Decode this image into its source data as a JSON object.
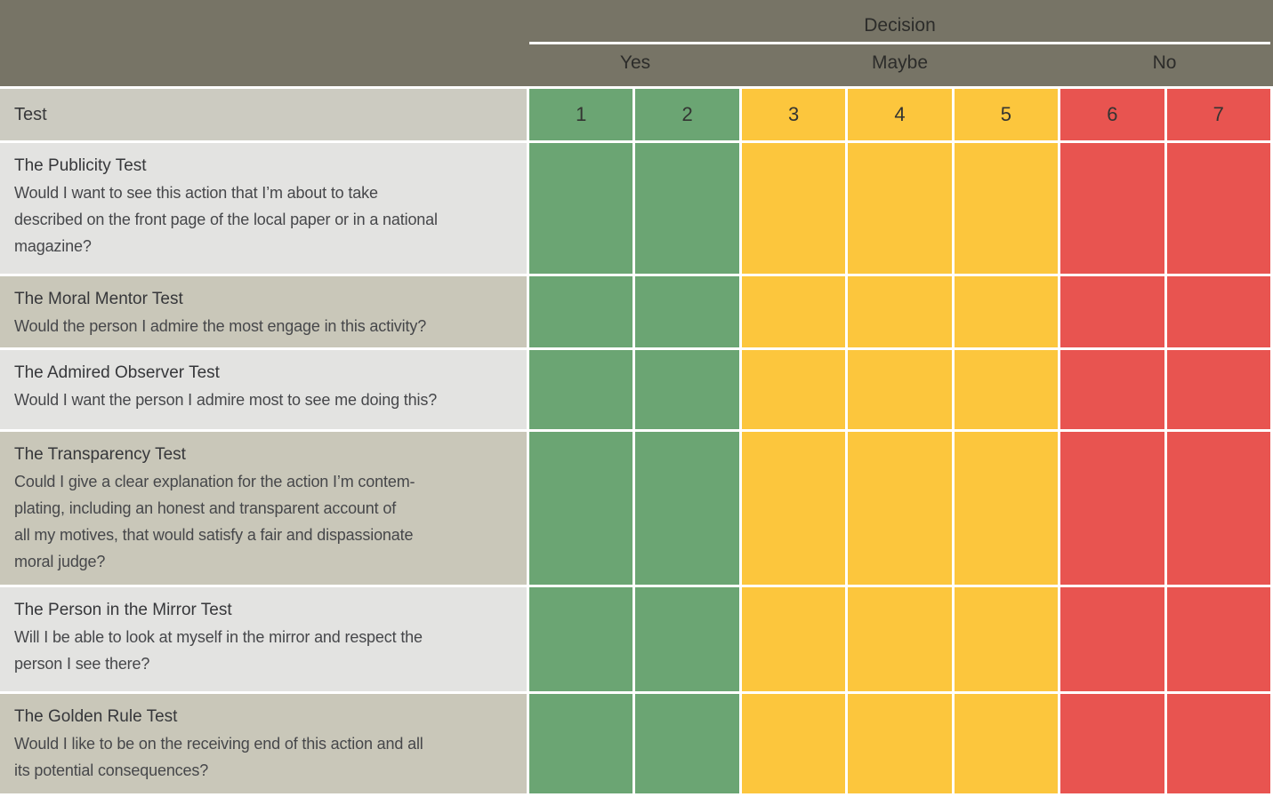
{
  "figure": {
    "corner_header": "Test",
    "decision": {
      "title": "Decision",
      "groups": [
        {
          "label": "Yes",
          "columns": "1–2"
        },
        {
          "label": "Maybe",
          "columns": "3–5"
        },
        {
          "label": "No",
          "columns": "6–7"
        }
      ]
    },
    "columns": [
      {
        "number": "1",
        "category": "yes",
        "color": "#6BA573"
      },
      {
        "number": "2",
        "category": "yes",
        "color": "#6BA573"
      },
      {
        "number": "3",
        "category": "maybe",
        "color": "#FCC63D"
      },
      {
        "number": "4",
        "category": "maybe",
        "color": "#FCC63D"
      },
      {
        "number": "5",
        "category": "maybe",
        "color": "#FCC63D"
      },
      {
        "number": "6",
        "category": "no",
        "color": "#E85450"
      },
      {
        "number": "7",
        "category": "no",
        "color": "#E85450"
      }
    ],
    "rows": [
      {
        "title": "The Publicity Test",
        "description_lines": [
          "Would I want to see this action that I’m about to take",
          "described on the front page of the local paper or in a national",
          "magazine?"
        ]
      },
      {
        "title": "The Moral Mentor Test",
        "description_lines": [
          "Would the person I admire the most engage in this activity?"
        ]
      },
      {
        "title": "The Admired Observer Test",
        "description_lines": [
          "Would I want the person I admire most to see me doing this?"
        ]
      },
      {
        "title": "The Transparency Test",
        "description_lines": [
          "Could I give a clear explanation for the action I’m contem-",
          "plating, including an honest and transparent account of",
          "all my motives, that would satisfy a fair and dispassionate",
          "moral judge?"
        ]
      },
      {
        "title": "The Person in the Mirror Test",
        "description_lines": [
          "Will I be able to look at myself in the mirror and respect the",
          "person I see there?"
        ]
      },
      {
        "title": "The Golden Rule Test",
        "description_lines": [
          "Would I like to be on the receiving end of this action and all",
          "its potential consequences?"
        ]
      }
    ],
    "colors": {
      "header_band": "#777466",
      "corner_cell": "#CCCBC1",
      "row_light": "#E3E3E1",
      "row_tan": "#C9C7B9",
      "green": "#6BA573",
      "yellow": "#FCC63D",
      "red": "#E85450",
      "grid_line": "#FFFFFF",
      "header_text": "#2C2C2A"
    }
  }
}
